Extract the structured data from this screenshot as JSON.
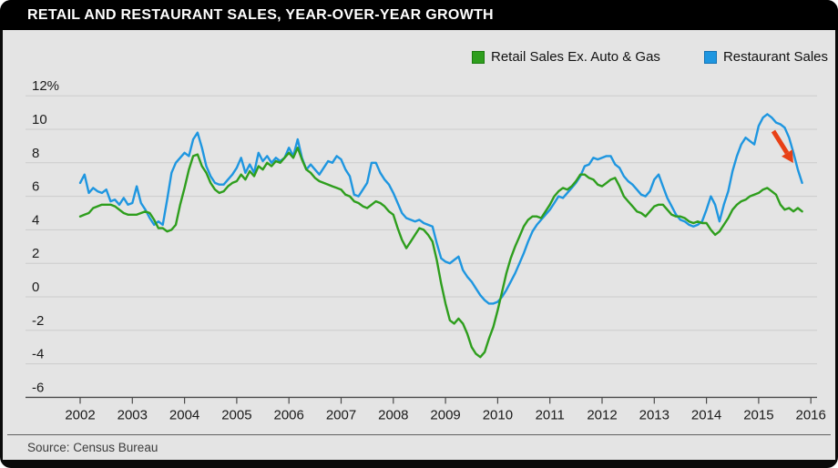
{
  "window": {
    "title": "RETAIL AND RESTAURANT SALES, YEAR-OVER-YEAR GROWTH"
  },
  "legend": {
    "items": [
      {
        "label": "Retail Sales Ex. Auto & Gas",
        "color": "#2e9e1d"
      },
      {
        "label": "Restaurant Sales",
        "color": "#1e96e0"
      }
    ]
  },
  "source_note": "Source: Census Bureau",
  "colors": {
    "background": "#e4e4e4",
    "frame": "#000000",
    "gridline": "#cbcbcb",
    "axis": "#4a4a4a",
    "tick_text": "#1a1a1a",
    "retail_green": "#2e9e1d",
    "restaurant_blue": "#1e96e0",
    "annotation_red": "#e84016"
  },
  "chart_data": {
    "type": "line",
    "title": "RETAIL AND RESTAURANT SALES, YEAR-OVER-YEAR GROWTH",
    "x_unit": "monthly, Jan 2002 - Nov 2015",
    "x_tick_labels": [
      "2002",
      "2003",
      "2004",
      "2005",
      "2006",
      "2007",
      "2008",
      "2009",
      "2010",
      "2011",
      "2012",
      "2013",
      "2014",
      "2015",
      "2016"
    ],
    "y_tick_labels": [
      "12%",
      "10",
      "8",
      "6",
      "4",
      "2",
      "0",
      "-2",
      "-4",
      "-6"
    ],
    "y_ticks": [
      12,
      10,
      8,
      6,
      4,
      2,
      0,
      -2,
      -4,
      -6
    ],
    "ylim": [
      -6,
      12
    ],
    "grid": true,
    "legend_position": "top-right",
    "series": [
      {
        "name": "Retail Sales Ex. Auto & Gas",
        "color": "#2e9e1d",
        "monthly_values": [
          4.8,
          4.9,
          5.0,
          5.3,
          5.4,
          5.5,
          5.5,
          5.5,
          5.4,
          5.2,
          5.0,
          4.9,
          4.9,
          4.9,
          5.0,
          5.1,
          5.0,
          4.6,
          4.1,
          4.1,
          3.9,
          4.0,
          4.3,
          5.5,
          6.5,
          7.6,
          8.4,
          8.5,
          7.8,
          7.4,
          6.8,
          6.4,
          6.2,
          6.3,
          6.6,
          6.8,
          6.9,
          7.3,
          7.0,
          7.5,
          7.2,
          7.8,
          7.6,
          8.0,
          7.8,
          8.1,
          8.0,
          8.3,
          8.6,
          8.3,
          8.9,
          8.2,
          7.6,
          7.4,
          7.1,
          6.9,
          6.8,
          6.7,
          6.6,
          6.5,
          6.4,
          6.1,
          6.0,
          5.7,
          5.6,
          5.4,
          5.3,
          5.5,
          5.7,
          5.6,
          5.4,
          5.1,
          4.9,
          4.1,
          3.4,
          2.9,
          3.3,
          3.7,
          4.1,
          4.0,
          3.7,
          3.3,
          2.2,
          0.8,
          -0.4,
          -1.4,
          -1.6,
          -1.3,
          -1.6,
          -2.2,
          -3.0,
          -3.4,
          -3.6,
          -3.3,
          -2.5,
          -1.8,
          -0.8,
          0.3,
          1.4,
          2.3,
          3.0,
          3.6,
          4.2,
          4.6,
          4.8,
          4.8,
          4.7,
          5.1,
          5.5,
          6.0,
          6.3,
          6.5,
          6.4,
          6.6,
          6.9,
          7.3,
          7.3,
          7.1,
          7.0,
          6.7,
          6.6,
          6.8,
          7.0,
          7.1,
          6.6,
          6.0,
          5.7,
          5.4,
          5.1,
          5.0,
          4.8,
          5.1,
          5.4,
          5.5,
          5.5,
          5.2,
          4.9,
          4.8,
          4.8,
          4.7,
          4.5,
          4.4,
          4.5,
          4.4,
          4.4,
          4.0,
          3.7,
          3.9,
          4.3,
          4.7,
          5.2,
          5.5,
          5.7,
          5.8,
          6.0,
          6.1,
          6.2,
          6.4,
          6.5,
          6.3,
          6.1,
          5.5,
          5.2,
          5.3,
          5.1,
          5.3,
          5.1
        ]
      },
      {
        "name": "Restaurant Sales",
        "color": "#1e96e0",
        "monthly_values": [
          6.8,
          7.3,
          6.2,
          6.5,
          6.3,
          6.2,
          6.4,
          5.7,
          5.8,
          5.5,
          5.9,
          5.5,
          5.6,
          6.6,
          5.6,
          5.2,
          4.7,
          4.3,
          4.5,
          4.3,
          5.8,
          7.4,
          8.0,
          8.3,
          8.6,
          8.4,
          9.4,
          9.8,
          8.9,
          7.8,
          7.2,
          6.8,
          6.7,
          6.7,
          7.0,
          7.3,
          7.7,
          8.3,
          7.4,
          7.9,
          7.4,
          8.6,
          8.1,
          8.4,
          8.0,
          8.3,
          8.1,
          8.3,
          8.9,
          8.4,
          9.4,
          8.3,
          7.6,
          7.9,
          7.6,
          7.3,
          7.7,
          8.1,
          8.0,
          8.4,
          8.2,
          7.6,
          7.2,
          6.1,
          6.0,
          6.4,
          6.8,
          8.0,
          8.0,
          7.4,
          7.0,
          6.7,
          6.2,
          5.6,
          5.0,
          4.7,
          4.6,
          4.5,
          4.6,
          4.4,
          4.3,
          4.2,
          3.2,
          2.3,
          2.1,
          2.0,
          2.2,
          2.4,
          1.6,
          1.2,
          0.9,
          0.5,
          0.1,
          -0.2,
          -0.4,
          -0.4,
          -0.3,
          0.0,
          0.4,
          0.9,
          1.4,
          2.0,
          2.6,
          3.3,
          3.9,
          4.3,
          4.6,
          4.9,
          5.2,
          5.6,
          6.0,
          5.9,
          6.2,
          6.5,
          6.8,
          7.2,
          7.8,
          7.9,
          8.3,
          8.2,
          8.3,
          8.4,
          8.4,
          7.9,
          7.7,
          7.2,
          6.9,
          6.7,
          6.4,
          6.1,
          6.0,
          6.3,
          7.0,
          7.3,
          6.6,
          5.9,
          5.4,
          4.9,
          4.6,
          4.5,
          4.3,
          4.2,
          4.3,
          4.5,
          5.2,
          6.0,
          5.5,
          4.5,
          5.5,
          6.3,
          7.5,
          8.4,
          9.1,
          9.5,
          9.3,
          9.1,
          10.2,
          10.7,
          10.9,
          10.7,
          10.4,
          10.3,
          10.1,
          9.5,
          8.6,
          7.6,
          6.8
        ]
      }
    ],
    "annotation": {
      "type": "arrow",
      "color": "#e84016",
      "x1": 849,
      "y1": 144,
      "x2": 864,
      "y2": 168,
      "meaning": "restaurant sales growth rolling over at end of series"
    }
  }
}
